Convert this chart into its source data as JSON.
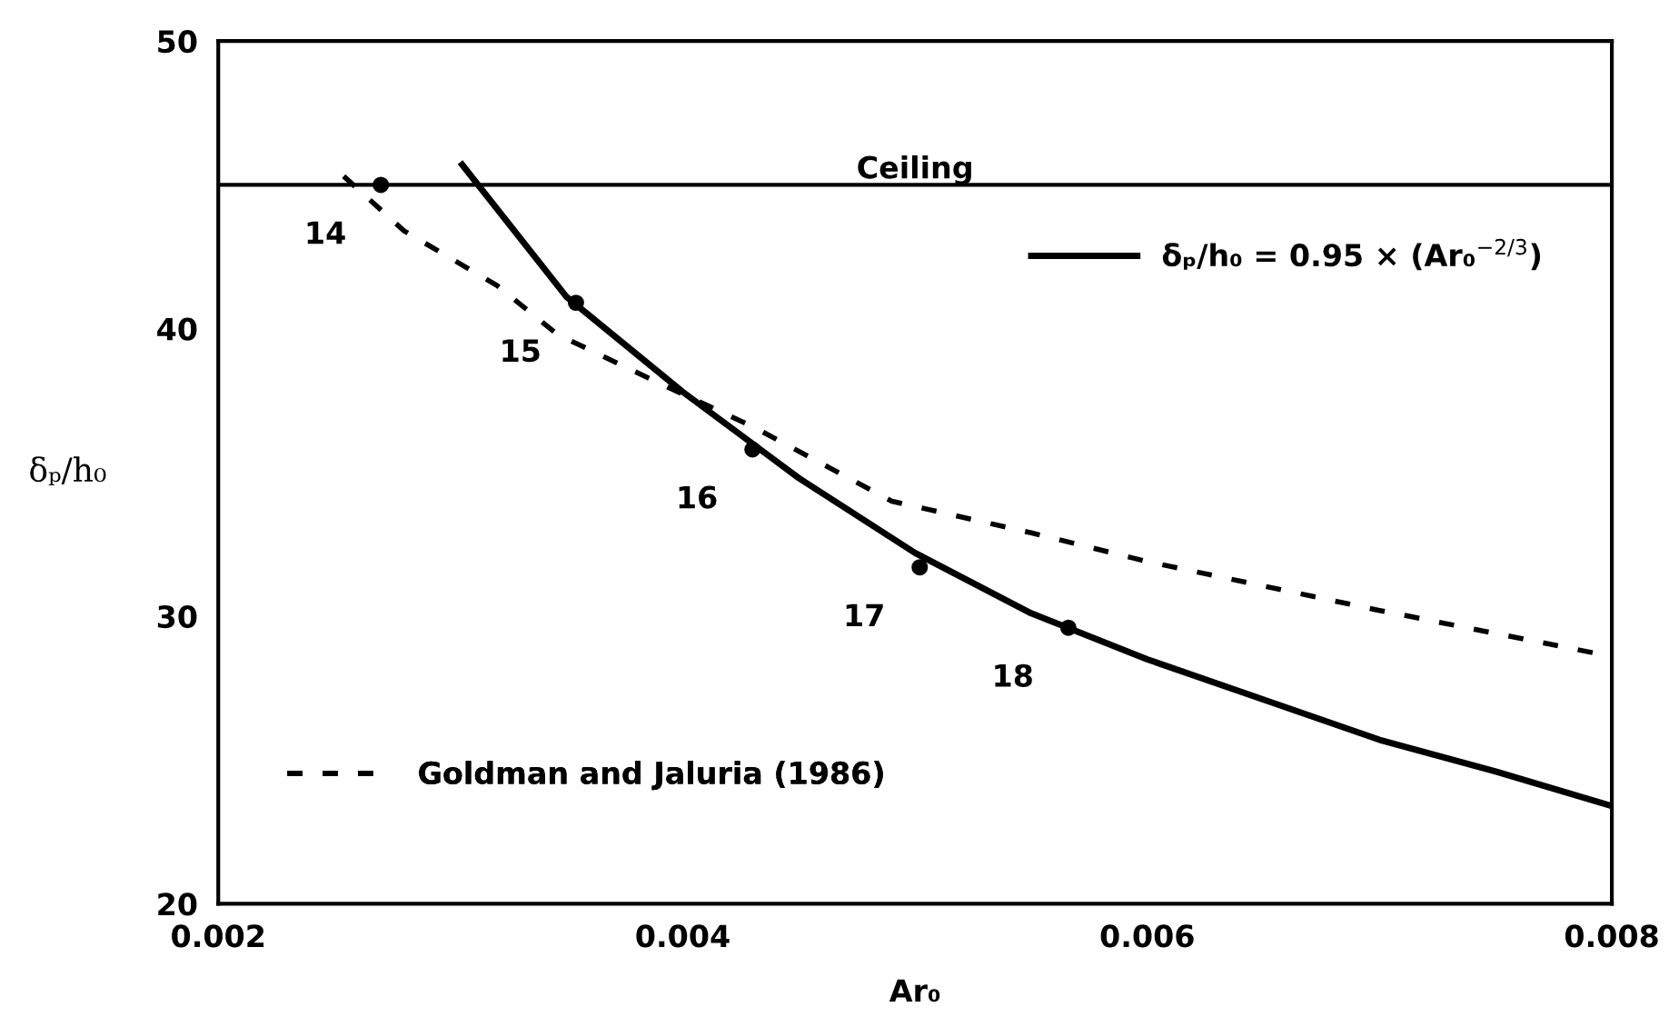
{
  "chart_data": {
    "type": "line",
    "xlabel": "Ar₀",
    "ylabel": "δₚ/h₀",
    "xlim": [
      0.002,
      0.008
    ],
    "xticks": [
      0.002,
      0.004,
      0.006,
      0.008
    ],
    "ylim": [
      20,
      50
    ],
    "yticks": [
      20,
      30,
      40,
      50
    ],
    "grid": false,
    "legend": "bottom left",
    "series": [
      {
        "name": "δₚ/h₀ = 0.95 × (Ar₀$^{−2/3}$)",
        "color": "#000000",
        "line_style": "solid",
        "x": [
          0.00305,
          0.0035,
          0.004,
          0.0045,
          0.005,
          0.0055,
          0.006,
          0.0065,
          0.007,
          0.0075,
          0.008
        ],
        "values": [
          45.7,
          41.1,
          37.8,
          34.8,
          32.2,
          30.1,
          28.5,
          27.1,
          25.7,
          24.6,
          23.4
        ]
      },
      {
        "name": "Goldman and Jaluria (1986)",
        "color": "#000000",
        "line_style": "dashed",
        "x": [
          0.00254,
          0.0028,
          0.0032,
          0.00346,
          0.0039,
          0.0043,
          0.0049,
          0.0055,
          0.006,
          0.007,
          0.008
        ],
        "values": [
          45.3,
          43.4,
          41.5,
          39.8,
          38.1,
          36.6,
          34.0,
          32.9,
          31.9,
          30.2,
          28.6
        ]
      },
      {
        "type": "scatter",
        "marker": "circle",
        "color": "#000000",
        "x": [
          0.0027,
          0.00354,
          0.0043,
          0.00502,
          0.00566
        ],
        "values": [
          45,
          40.9,
          35.8,
          31.7,
          29.6
        ]
      }
    ],
    "ref_lines": [
      {
        "axis": "y",
        "value": 45,
        "label": "Ceiling",
        "color": "#000000",
        "line_style": "solid"
      }
    ],
    "annotations": [
      {
        "text": "14",
        "x": 0.0027,
        "y": 45
      },
      {
        "text": "15",
        "x": 0.00354,
        "y": 40.9
      },
      {
        "text": "16",
        "x": 0.0043,
        "y": 35.8
      },
      {
        "text": "17",
        "x": 0.00502,
        "y": 31.7
      },
      {
        "text": "18",
        "x": 0.00566,
        "y": 29.6
      }
    ]
  }
}
